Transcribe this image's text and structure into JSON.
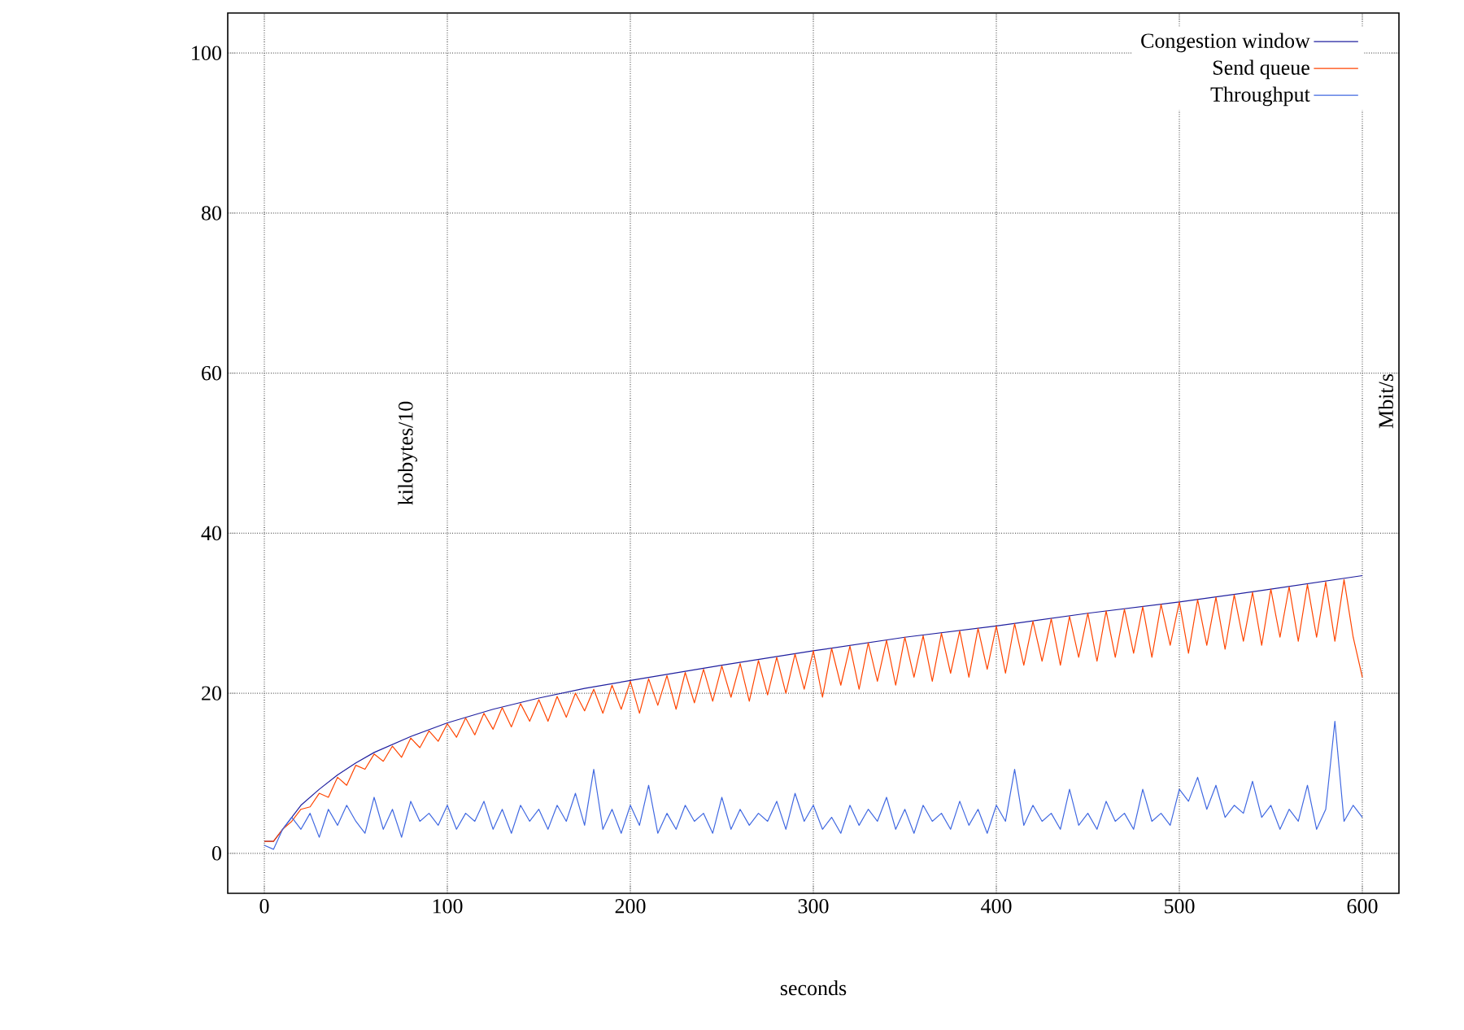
{
  "chart_data": {
    "type": "line",
    "xlabel": "seconds",
    "ylabel": "kilobytes/10",
    "y2label": "Mbit/s",
    "xlim": [
      -20,
      620
    ],
    "ylim": [
      -5,
      105
    ],
    "xticks": [
      0,
      100,
      200,
      300,
      400,
      500,
      600
    ],
    "yticks": [
      0,
      20,
      40,
      60,
      80,
      100
    ],
    "grid": true,
    "legend": "top right",
    "line_style": "solid",
    "marker": "none",
    "series": [
      {
        "name": "Congestion window",
        "color": "#1f1f9f",
        "x": [
          0,
          5,
          10,
          20,
          30,
          40,
          50,
          60,
          80,
          100,
          125,
          150,
          175,
          200,
          250,
          300,
          350,
          400,
          450,
          500,
          550,
          600
        ],
        "values": [
          1.5,
          1.5,
          3,
          6,
          8,
          9.8,
          11.3,
          12.6,
          14.6,
          16.3,
          18,
          19.4,
          20.6,
          21.6,
          23.5,
          25.3,
          27,
          28.4,
          30,
          31.4,
          33,
          34.7
        ]
      },
      {
        "name": "Send queue",
        "color": "#ff4500",
        "x": [
          0,
          5,
          10,
          15,
          20,
          25,
          30,
          35,
          40,
          45,
          50,
          55,
          60,
          65,
          70,
          75,
          80,
          85,
          90,
          95,
          100,
          105,
          110,
          115,
          120,
          125,
          130,
          135,
          140,
          145,
          150,
          155,
          160,
          165,
          170,
          175,
          180,
          185,
          190,
          195,
          200,
          205,
          210,
          215,
          220,
          225,
          230,
          235,
          240,
          245,
          250,
          255,
          260,
          265,
          270,
          275,
          280,
          285,
          290,
          295,
          300,
          305,
          310,
          315,
          320,
          325,
          330,
          335,
          340,
          345,
          350,
          355,
          360,
          365,
          370,
          375,
          380,
          385,
          390,
          395,
          400,
          405,
          410,
          415,
          420,
          425,
          430,
          435,
          440,
          445,
          450,
          455,
          460,
          465,
          470,
          475,
          480,
          485,
          490,
          495,
          500,
          505,
          510,
          515,
          520,
          525,
          530,
          535,
          540,
          545,
          550,
          555,
          560,
          565,
          570,
          575,
          580,
          585,
          590,
          595,
          600
        ],
        "values": [
          1.5,
          1.5,
          3,
          4,
          5.5,
          5.8,
          7.5,
          7,
          9.5,
          8.5,
          11,
          10.5,
          12.4,
          11.5,
          13.4,
          12,
          14.4,
          13.2,
          15.3,
          14,
          16.2,
          14.5,
          16.9,
          14.8,
          17.5,
          15.5,
          18.2,
          15.8,
          18.7,
          16.5,
          19.2,
          16.5,
          19.6,
          17,
          20,
          17.8,
          20.5,
          17.5,
          21,
          18,
          21.5,
          17.5,
          21.8,
          18.5,
          22.2,
          18,
          22.6,
          18.8,
          23,
          19,
          23.4,
          19.5,
          23.7,
          19,
          24.1,
          19.8,
          24.5,
          20,
          24.9,
          20.5,
          25.3,
          19.5,
          25.6,
          21,
          25.9,
          20.5,
          26.3,
          21.5,
          26.6,
          21,
          27,
          22,
          27.2,
          21.5,
          27.5,
          22.5,
          27.8,
          22,
          28.1,
          23,
          28.4,
          22.5,
          28.7,
          23.5,
          29,
          24,
          29.3,
          23.5,
          29.6,
          24.5,
          30,
          24,
          30.3,
          24.5,
          30.5,
          25,
          30.8,
          24.5,
          31.1,
          26,
          31.4,
          25,
          31.7,
          26,
          32,
          25.5,
          32.3,
          26.5,
          32.6,
          26,
          33,
          27,
          33.3,
          26.5,
          33.6,
          27,
          33.9,
          26.5,
          34.2,
          27,
          22
        ]
      },
      {
        "name": "Throughput",
        "color": "#4169e1",
        "x": [
          0,
          5,
          10,
          15,
          20,
          25,
          30,
          35,
          40,
          45,
          50,
          55,
          60,
          65,
          70,
          75,
          80,
          85,
          90,
          95,
          100,
          105,
          110,
          115,
          120,
          125,
          130,
          135,
          140,
          145,
          150,
          155,
          160,
          165,
          170,
          175,
          180,
          185,
          190,
          195,
          200,
          205,
          210,
          215,
          220,
          225,
          230,
          235,
          240,
          245,
          250,
          255,
          260,
          265,
          270,
          275,
          280,
          285,
          290,
          295,
          300,
          305,
          310,
          315,
          320,
          325,
          330,
          335,
          340,
          345,
          350,
          355,
          360,
          365,
          370,
          375,
          380,
          385,
          390,
          395,
          400,
          405,
          410,
          415,
          420,
          425,
          430,
          435,
          440,
          445,
          450,
          455,
          460,
          465,
          470,
          475,
          480,
          485,
          490,
          495,
          500,
          505,
          510,
          515,
          520,
          525,
          530,
          535,
          540,
          545,
          550,
          555,
          560,
          565,
          570,
          575,
          580,
          585,
          590,
          595,
          600
        ],
        "values": [
          1,
          0.5,
          3,
          4.5,
          3,
          5,
          2,
          5.5,
          3.5,
          6,
          4,
          2.5,
          7,
          3,
          5.5,
          2,
          6.5,
          4,
          5,
          3.5,
          6,
          3,
          5,
          4,
          6.5,
          3,
          5.5,
          2.5,
          6,
          4,
          5.5,
          3,
          6,
          4,
          7.5,
          3.5,
          10.5,
          3,
          5.5,
          2.5,
          6,
          3.5,
          8.5,
          2.5,
          5,
          3,
          6,
          4,
          5,
          2.5,
          7,
          3,
          5.5,
          3.5,
          5,
          4,
          6.5,
          3,
          7.5,
          4,
          6,
          3,
          4.5,
          2.5,
          6,
          3.5,
          5.5,
          4,
          7,
          3,
          5.5,
          2.5,
          6,
          4,
          5,
          3,
          6.5,
          3.5,
          5.5,
          2.5,
          6,
          4,
          10.5,
          3.5,
          6,
          4,
          5,
          3,
          8,
          3.5,
          5,
          3,
          6.5,
          4,
          5,
          3,
          8,
          4,
          5,
          3.5,
          8,
          6.5,
          9.5,
          5.5,
          8.5,
          4.5,
          6,
          5,
          9,
          4.5,
          6,
          3,
          5.5,
          4,
          8.5,
          3,
          5.5,
          16.5,
          4,
          6,
          4.5
        ]
      }
    ]
  }
}
